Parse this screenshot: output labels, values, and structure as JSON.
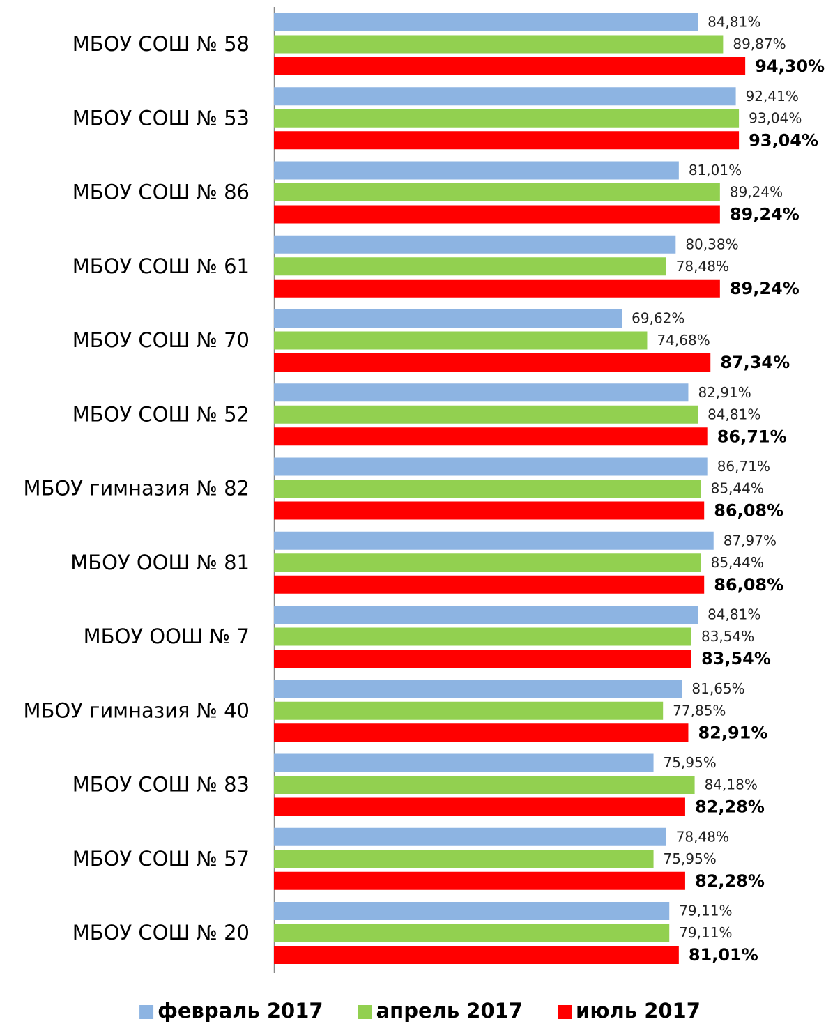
{
  "chart_data": {
    "type": "bar",
    "orientation": "horizontal",
    "categories": [
      "МБОУ СОШ  № 58",
      "МБОУ СОШ  № 53",
      "МБОУ СОШ  № 86",
      "МБОУ СОШ  № 61",
      "МБОУ СОШ  № 70",
      "МБОУ СОШ  № 52",
      "МБОУ гимназия № 82",
      "МБОУ ООШ  № 81",
      "МБОУ ООШ  № 7",
      "МБОУ гимназия № 40",
      "МБОУ СОШ  № 83",
      "МБОУ СОШ  № 57",
      "МБОУ СОШ  № 20"
    ],
    "series": [
      {
        "name": "февраль 2017",
        "color": "#8db4e2",
        "values": [
          84.81,
          92.41,
          81.01,
          80.38,
          69.62,
          82.91,
          86.71,
          87.97,
          84.81,
          81.65,
          75.95,
          78.48,
          79.11
        ],
        "value_labels": [
          "84,81%",
          "92,41%",
          "81,01%",
          "80,38%",
          "69,62%",
          "82,91%",
          "86,71%",
          "87,97%",
          "84,81%",
          "81,65%",
          "75,95%",
          "78,48%",
          "79,11%"
        ]
      },
      {
        "name": "апрель 2017",
        "color": "#92d050",
        "values": [
          89.87,
          93.04,
          89.24,
          78.48,
          74.68,
          84.81,
          85.44,
          85.44,
          83.54,
          77.85,
          84.18,
          75.95,
          79.11
        ],
        "value_labels": [
          "89,87%",
          "93,04%",
          "89,24%",
          "78,48%",
          "74,68%",
          "84,81%",
          "85,44%",
          "85,44%",
          "83,54%",
          "77,85%",
          "84,18%",
          "75,95%",
          "79,11%"
        ]
      },
      {
        "name": "июль 2017",
        "color": "#ff0000",
        "values": [
          94.3,
          93.04,
          89.24,
          89.24,
          87.34,
          86.71,
          86.08,
          86.08,
          83.54,
          82.91,
          82.28,
          82.28,
          81.01
        ],
        "value_labels": [
          "94,30%",
          "93,04%",
          "89,24%",
          "89,24%",
          "87,34%",
          "86,71%",
          "86,08%",
          "86,08%",
          "83,54%",
          "82,91%",
          "82,28%",
          "82,28%",
          "81,01%"
        ]
      }
    ],
    "xlim": [
      0,
      100
    ],
    "legend": "bottom"
  }
}
